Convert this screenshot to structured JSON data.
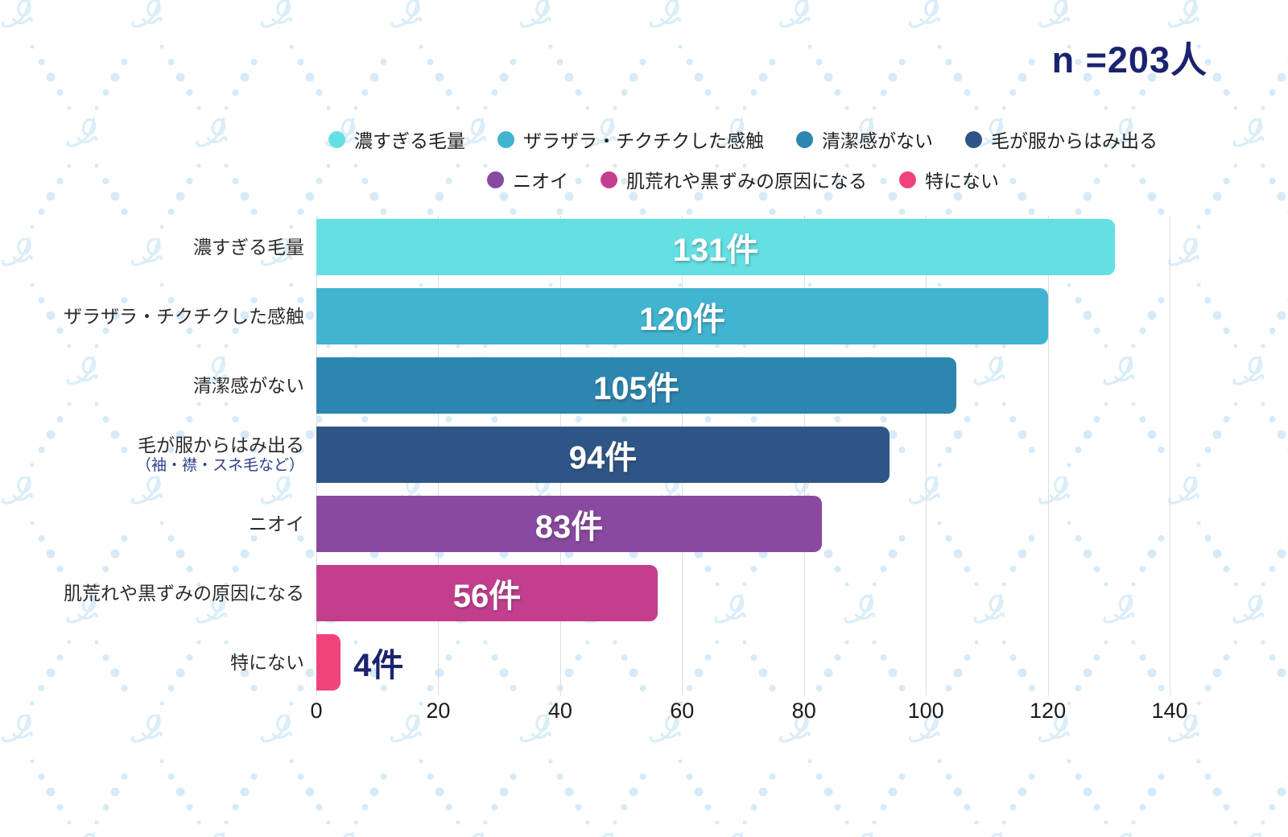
{
  "header": {
    "n_label": "n =203人",
    "accent_color": "#1b2370"
  },
  "chart_data": {
    "type": "bar",
    "orientation": "horizontal",
    "title": "",
    "sample_note": "n =203人",
    "unit_suffix": "件",
    "categories": [
      "濃すぎる毛量",
      "ザラザラ・チクチクした感触",
      "清潔感がない",
      "毛が服からはみ出る",
      "ニオイ",
      "肌荒れや黒ずみの原因になる",
      "特にない"
    ],
    "sublabels": [
      "",
      "",
      "",
      "（袖・襟・スネ毛など）",
      "",
      "",
      ""
    ],
    "values": [
      131,
      120,
      105,
      94,
      83,
      56,
      4
    ],
    "value_labels": [
      "131件",
      "120件",
      "105件",
      "94件",
      "83件",
      "56件",
      "4件"
    ],
    "colors": [
      "#64e0e2",
      "#41b4d2",
      "#2d86af",
      "#2f5587",
      "#8a49a0",
      "#c33f8e",
      "#f0437c"
    ],
    "xlim": [
      0,
      140
    ],
    "x_ticks": [
      0,
      20,
      40,
      60,
      80,
      100,
      120,
      140
    ],
    "grid": true,
    "legend_position": "top-two-rows",
    "legend_rows": [
      [
        {
          "label": "濃すぎる毛量",
          "color": "#64e0e2"
        },
        {
          "label": "ザラザラ・チクチクした感触",
          "color": "#41b4d2"
        },
        {
          "label": "清潔感がない",
          "color": "#2d86af"
        },
        {
          "label": "毛が服からはみ出る",
          "color": "#2f5587"
        }
      ],
      [
        {
          "label": "ニオイ",
          "color": "#8a49a0"
        },
        {
          "label": "肌荒れや黒ずみの原因になる",
          "color": "#c33f8e"
        },
        {
          "label": "特にない",
          "color": "#f0437c"
        }
      ]
    ]
  }
}
